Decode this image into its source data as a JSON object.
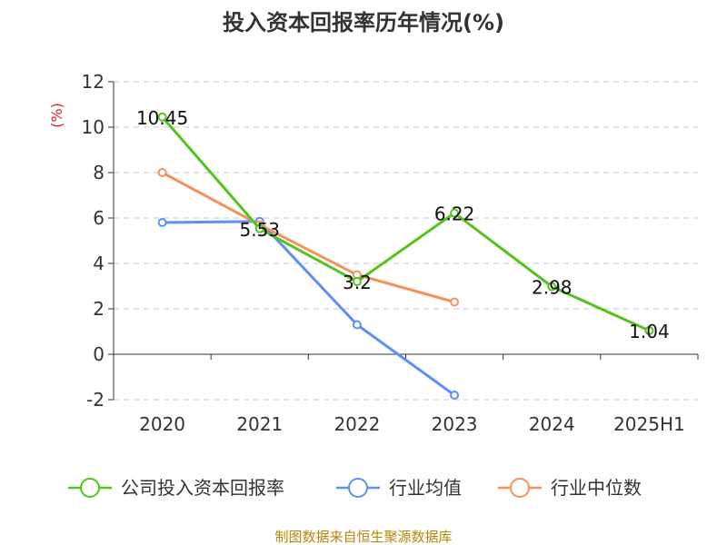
{
  "chart_data": {
    "type": "line",
    "title": "投入资本回报率历年情况(%)",
    "unit_label": "(%)",
    "categories": [
      "2020",
      "2021",
      "2022",
      "2023",
      "2024",
      "2025H1"
    ],
    "y_ticks": [
      "12",
      "10",
      "8",
      "6",
      "4",
      "2",
      "0",
      "-2"
    ],
    "ylim": [
      -2,
      12
    ],
    "grid": true,
    "legend_position": "bottom",
    "series": [
      {
        "name": "公司投入资本回报率",
        "color": "#52c41a",
        "values": [
          10.45,
          5.53,
          3.2,
          6.22,
          2.98,
          1.04
        ],
        "labels": [
          "10.45",
          "5.53",
          "3.2",
          "6.22",
          "2.98",
          "1.04"
        ]
      },
      {
        "name": "行业均值",
        "color": "#5b8ff9",
        "values": [
          5.8,
          5.85,
          1.3,
          -1.8,
          null,
          null
        ]
      },
      {
        "name": "行业中位数",
        "color": "#f4925c",
        "values": [
          8.0,
          5.7,
          3.5,
          2.3,
          null,
          null
        ]
      }
    ]
  },
  "source": "制图数据来自恒生聚源数据库"
}
